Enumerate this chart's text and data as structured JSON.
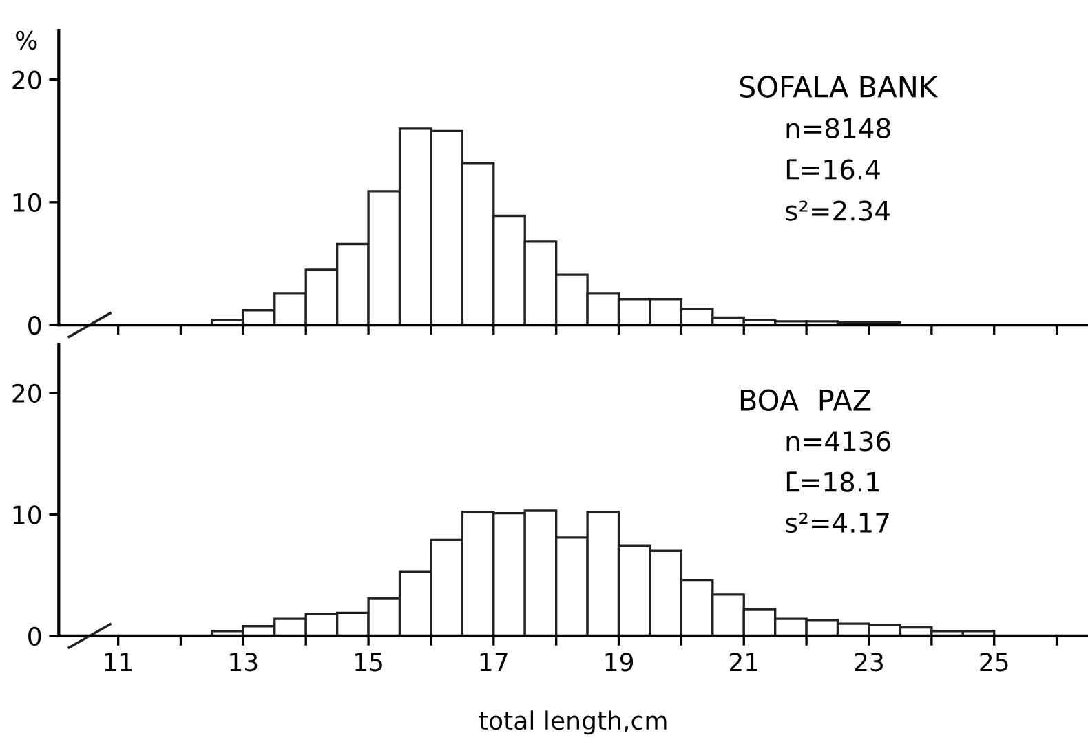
{
  "chart_data": [
    {
      "type": "histogram",
      "ylabel": "%",
      "annotations": [
        "SOFALA BANK",
        "n=8148",
        "L̄=16.4",
        "s²=2.34"
      ],
      "bins": [
        12.5,
        13,
        13.5,
        14,
        14.5,
        15,
        15.5,
        16,
        16.5,
        17,
        17.5,
        18,
        18.5,
        19,
        19.5,
        20,
        20.5,
        21,
        21.5,
        22,
        22.5,
        23,
        23.5
      ],
      "values": [
        0.4,
        1.2,
        2.6,
        4.5,
        6.6,
        10.9,
        16.0,
        15.8,
        13.2,
        8.9,
        6.8,
        4.1,
        2.6,
        2.1,
        2.1,
        1.3,
        0.6,
        0.4,
        0.3,
        0.3,
        0.2,
        0.2
      ],
      "color": "#ffffff",
      "xlim": [
        10.05,
        26.5
      ],
      "ylim": [
        0,
        24
      ],
      "yticks": [
        0,
        10,
        20
      ],
      "xticks": [
        11,
        {
          "value": 12,
          "label": null
        },
        13,
        {
          "value": 14,
          "label": null
        },
        15,
        {
          "value": 16,
          "label": null
        },
        17,
        {
          "value": 18,
          "label": null
        },
        19,
        {
          "value": 20,
          "label": null
        },
        21,
        {
          "value": 22,
          "label": null
        },
        23,
        {
          "value": 24,
          "label": null
        },
        25,
        {
          "value": 26,
          "label": null
        }
      ],
      "tick_labels": "y",
      "grid": false
    },
    {
      "type": "histogram",
      "xlabel": "total length,cm",
      "annotations": [
        "BOA  PAZ",
        "n=4136",
        "L̄=18.1",
        "s²=4.17"
      ],
      "bins": [
        12.5,
        13,
        13.5,
        14,
        14.5,
        15,
        15.5,
        16,
        16.5,
        17,
        17.5,
        18,
        18.5,
        19,
        19.5,
        20,
        20.5,
        21,
        21.5,
        22,
        22.5,
        23,
        23.5,
        24,
        24.5,
        25
      ],
      "values": [
        0.4,
        0.8,
        1.4,
        1.8,
        1.9,
        3.1,
        5.3,
        7.9,
        10.2,
        10.1,
        10.3,
        8.1,
        10.2,
        7.4,
        7.0,
        4.6,
        3.4,
        2.2,
        1.4,
        1.3,
        1.0,
        0.9,
        0.7,
        0.4,
        0.4
      ],
      "color": "#ffffff",
      "xlim": [
        10.05,
        26.5
      ],
      "ylim": [
        0,
        24
      ],
      "yticks": [
        0,
        10,
        20
      ],
      "xticks": [
        11,
        {
          "value": 12,
          "label": null
        },
        13,
        {
          "value": 14,
          "label": null
        },
        15,
        {
          "value": 16,
          "label": null
        },
        17,
        {
          "value": 18,
          "label": null
        },
        19,
        {
          "value": 20,
          "label": null
        },
        21,
        {
          "value": 22,
          "label": null
        },
        23,
        {
          "value": 24,
          "label": null
        },
        25,
        {
          "value": 26,
          "label": null
        }
      ],
      "grid": false
    }
  ]
}
